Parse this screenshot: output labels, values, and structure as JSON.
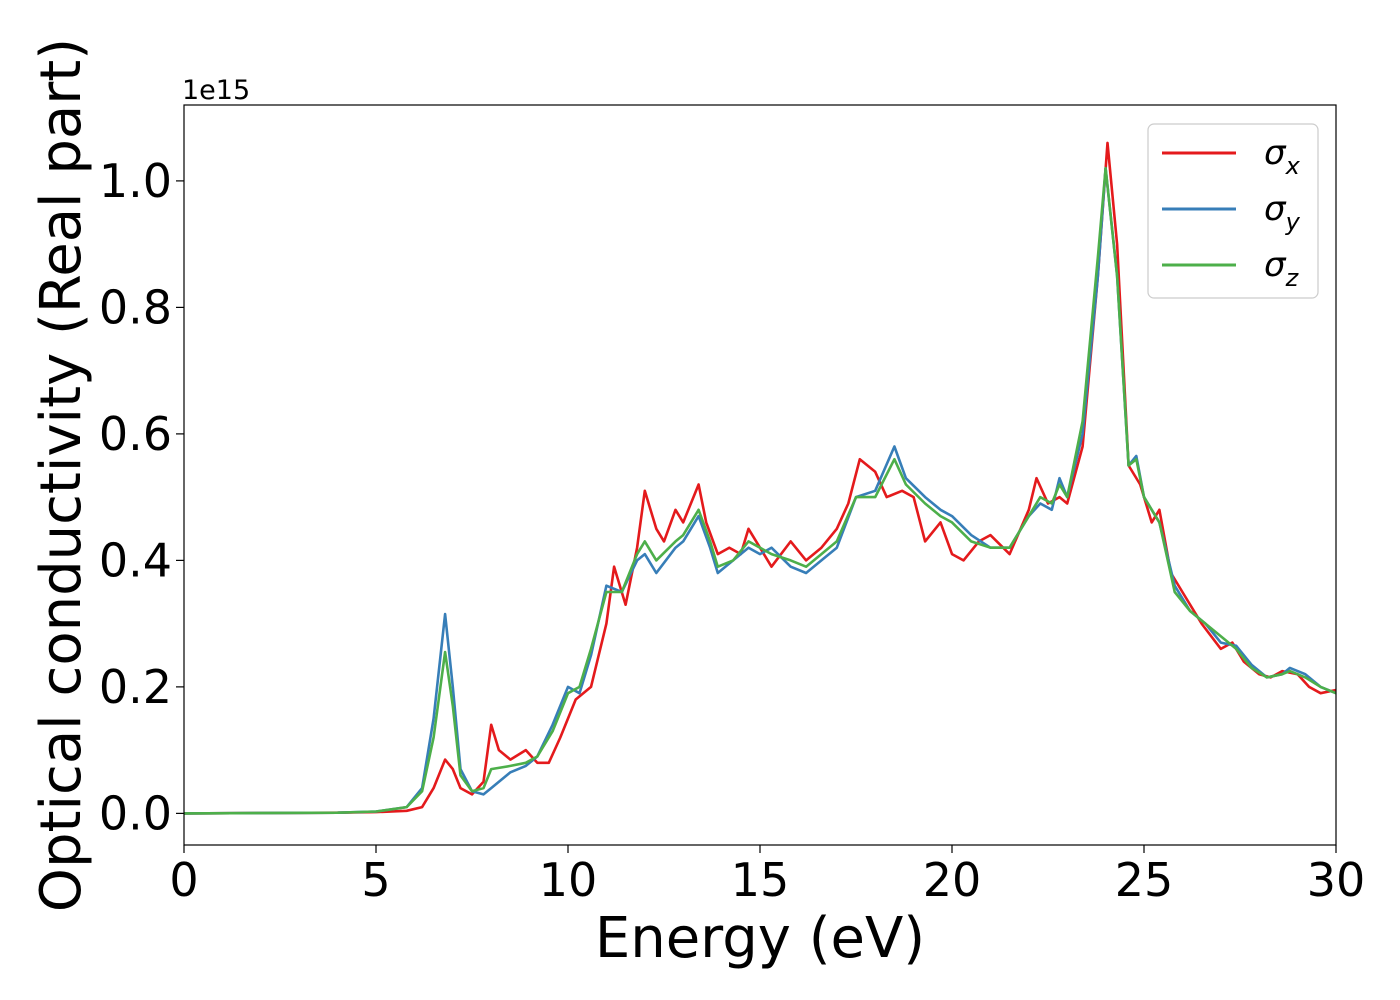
{
  "chart_data": {
    "type": "line",
    "title": "",
    "xlabel": "Energy (eV)",
    "ylabel": "Optical conductivity (Real part)",
    "y_offset_text": "1e15",
    "xlim": [
      0,
      30
    ],
    "ylim": [
      -0.05,
      1.12
    ],
    "xticks": [
      0,
      5,
      10,
      15,
      20,
      25,
      30
    ],
    "xtick_labels": [
      "0",
      "5",
      "10",
      "15",
      "20",
      "25",
      "30"
    ],
    "yticks": [
      0.0,
      0.2,
      0.4,
      0.6,
      0.8,
      1.0
    ],
    "ytick_labels": [
      "0.0",
      "0.2",
      "0.4",
      "0.6",
      "0.8",
      "1.0"
    ],
    "grid": false,
    "legend_position": "top-right",
    "series": [
      {
        "name": "σ",
        "subscript": "x",
        "color": "#e41a1c",
        "points": [
          [
            0,
            0
          ],
          [
            4,
            0.001
          ],
          [
            5,
            0.002
          ],
          [
            5.8,
            0.004
          ],
          [
            6.2,
            0.01
          ],
          [
            6.5,
            0.04
          ],
          [
            6.8,
            0.085
          ],
          [
            7.0,
            0.07
          ],
          [
            7.2,
            0.04
          ],
          [
            7.5,
            0.03
          ],
          [
            7.8,
            0.05
          ],
          [
            8.0,
            0.14
          ],
          [
            8.2,
            0.1
          ],
          [
            8.5,
            0.085
          ],
          [
            8.9,
            0.1
          ],
          [
            9.2,
            0.08
          ],
          [
            9.5,
            0.08
          ],
          [
            9.8,
            0.12
          ],
          [
            10.2,
            0.18
          ],
          [
            10.6,
            0.2
          ],
          [
            11.0,
            0.3
          ],
          [
            11.2,
            0.39
          ],
          [
            11.5,
            0.33
          ],
          [
            11.8,
            0.42
          ],
          [
            12.0,
            0.51
          ],
          [
            12.3,
            0.45
          ],
          [
            12.5,
            0.43
          ],
          [
            12.8,
            0.48
          ],
          [
            13.0,
            0.46
          ],
          [
            13.4,
            0.52
          ],
          [
            13.6,
            0.46
          ],
          [
            13.9,
            0.41
          ],
          [
            14.2,
            0.42
          ],
          [
            14.5,
            0.41
          ],
          [
            14.7,
            0.45
          ],
          [
            15.0,
            0.42
          ],
          [
            15.3,
            0.39
          ],
          [
            15.8,
            0.43
          ],
          [
            16.2,
            0.4
          ],
          [
            16.6,
            0.42
          ],
          [
            17.0,
            0.45
          ],
          [
            17.3,
            0.49
          ],
          [
            17.6,
            0.56
          ],
          [
            18.0,
            0.54
          ],
          [
            18.3,
            0.5
          ],
          [
            18.7,
            0.51
          ],
          [
            19.0,
            0.5
          ],
          [
            19.3,
            0.43
          ],
          [
            19.7,
            0.46
          ],
          [
            20.0,
            0.41
          ],
          [
            20.3,
            0.4
          ],
          [
            20.7,
            0.43
          ],
          [
            21.0,
            0.44
          ],
          [
            21.5,
            0.41
          ],
          [
            22.0,
            0.48
          ],
          [
            22.2,
            0.53
          ],
          [
            22.5,
            0.49
          ],
          [
            22.8,
            0.5
          ],
          [
            23.0,
            0.49
          ],
          [
            23.4,
            0.58
          ],
          [
            23.8,
            0.85
          ],
          [
            24.05,
            1.06
          ],
          [
            24.3,
            0.9
          ],
          [
            24.6,
            0.55
          ],
          [
            24.9,
            0.52
          ],
          [
            25.2,
            0.46
          ],
          [
            25.4,
            0.48
          ],
          [
            25.7,
            0.38
          ],
          [
            26.0,
            0.35
          ],
          [
            26.5,
            0.3
          ],
          [
            27.0,
            0.26
          ],
          [
            27.3,
            0.27
          ],
          [
            27.6,
            0.24
          ],
          [
            28.0,
            0.22
          ],
          [
            28.3,
            0.215
          ],
          [
            28.6,
            0.225
          ],
          [
            29.0,
            0.22
          ],
          [
            29.3,
            0.2
          ],
          [
            29.6,
            0.19
          ],
          [
            30.0,
            0.195
          ]
        ]
      },
      {
        "name": "σ",
        "subscript": "y",
        "color": "#377eb8",
        "points": [
          [
            0,
            0
          ],
          [
            4,
            0.001
          ],
          [
            5,
            0.003
          ],
          [
            5.8,
            0.01
          ],
          [
            6.2,
            0.04
          ],
          [
            6.5,
            0.15
          ],
          [
            6.8,
            0.315
          ],
          [
            7.0,
            0.2
          ],
          [
            7.2,
            0.07
          ],
          [
            7.5,
            0.035
          ],
          [
            7.8,
            0.03
          ],
          [
            8.0,
            0.04
          ],
          [
            8.5,
            0.065
          ],
          [
            8.9,
            0.075
          ],
          [
            9.2,
            0.09
          ],
          [
            9.6,
            0.14
          ],
          [
            10.0,
            0.2
          ],
          [
            10.3,
            0.19
          ],
          [
            10.6,
            0.25
          ],
          [
            11.0,
            0.36
          ],
          [
            11.4,
            0.35
          ],
          [
            11.8,
            0.4
          ],
          [
            12.0,
            0.41
          ],
          [
            12.3,
            0.38
          ],
          [
            12.8,
            0.42
          ],
          [
            13.0,
            0.43
          ],
          [
            13.4,
            0.47
          ],
          [
            13.7,
            0.42
          ],
          [
            13.9,
            0.38
          ],
          [
            14.3,
            0.4
          ],
          [
            14.7,
            0.42
          ],
          [
            15.0,
            0.41
          ],
          [
            15.3,
            0.42
          ],
          [
            15.8,
            0.39
          ],
          [
            16.2,
            0.38
          ],
          [
            16.6,
            0.4
          ],
          [
            17.0,
            0.42
          ],
          [
            17.5,
            0.5
          ],
          [
            18.0,
            0.51
          ],
          [
            18.5,
            0.58
          ],
          [
            18.8,
            0.53
          ],
          [
            19.3,
            0.5
          ],
          [
            19.7,
            0.48
          ],
          [
            20.0,
            0.47
          ],
          [
            20.5,
            0.44
          ],
          [
            21.0,
            0.42
          ],
          [
            21.5,
            0.42
          ],
          [
            22.0,
            0.47
          ],
          [
            22.3,
            0.49
          ],
          [
            22.6,
            0.48
          ],
          [
            22.8,
            0.53
          ],
          [
            23.0,
            0.5
          ],
          [
            23.4,
            0.6
          ],
          [
            23.8,
            0.85
          ],
          [
            24.0,
            1.02
          ],
          [
            24.3,
            0.85
          ],
          [
            24.6,
            0.55
          ],
          [
            24.8,
            0.565
          ],
          [
            25.0,
            0.5
          ],
          [
            25.4,
            0.46
          ],
          [
            25.8,
            0.36
          ],
          [
            26.2,
            0.32
          ],
          [
            26.6,
            0.3
          ],
          [
            27.0,
            0.27
          ],
          [
            27.4,
            0.265
          ],
          [
            27.8,
            0.235
          ],
          [
            28.2,
            0.215
          ],
          [
            28.6,
            0.22
          ],
          [
            28.8,
            0.23
          ],
          [
            29.2,
            0.22
          ],
          [
            29.6,
            0.2
          ],
          [
            30.0,
            0.19
          ]
        ]
      },
      {
        "name": "σ",
        "subscript": "z",
        "color": "#4daf4a",
        "points": [
          [
            0,
            0
          ],
          [
            4,
            0.001
          ],
          [
            5,
            0.003
          ],
          [
            5.8,
            0.01
          ],
          [
            6.2,
            0.035
          ],
          [
            6.5,
            0.12
          ],
          [
            6.8,
            0.255
          ],
          [
            7.0,
            0.17
          ],
          [
            7.2,
            0.06
          ],
          [
            7.5,
            0.035
          ],
          [
            7.8,
            0.04
          ],
          [
            8.0,
            0.07
          ],
          [
            8.5,
            0.075
          ],
          [
            8.9,
            0.08
          ],
          [
            9.2,
            0.09
          ],
          [
            9.6,
            0.13
          ],
          [
            10.0,
            0.19
          ],
          [
            10.3,
            0.2
          ],
          [
            10.6,
            0.26
          ],
          [
            11.0,
            0.35
          ],
          [
            11.4,
            0.35
          ],
          [
            11.8,
            0.41
          ],
          [
            12.0,
            0.43
          ],
          [
            12.3,
            0.4
          ],
          [
            12.8,
            0.43
          ],
          [
            13.0,
            0.44
          ],
          [
            13.4,
            0.48
          ],
          [
            13.7,
            0.43
          ],
          [
            13.9,
            0.39
          ],
          [
            14.3,
            0.4
          ],
          [
            14.7,
            0.43
          ],
          [
            15.0,
            0.42
          ],
          [
            15.3,
            0.41
          ],
          [
            15.8,
            0.4
          ],
          [
            16.2,
            0.39
          ],
          [
            16.6,
            0.41
          ],
          [
            17.0,
            0.43
          ],
          [
            17.5,
            0.5
          ],
          [
            18.0,
            0.5
          ],
          [
            18.5,
            0.56
          ],
          [
            18.8,
            0.52
          ],
          [
            19.3,
            0.49
          ],
          [
            19.7,
            0.47
          ],
          [
            20.0,
            0.46
          ],
          [
            20.5,
            0.43
          ],
          [
            21.0,
            0.42
          ],
          [
            21.5,
            0.42
          ],
          [
            22.0,
            0.47
          ],
          [
            22.3,
            0.5
          ],
          [
            22.6,
            0.49
          ],
          [
            22.8,
            0.52
          ],
          [
            23.0,
            0.5
          ],
          [
            23.4,
            0.62
          ],
          [
            23.8,
            0.88
          ],
          [
            24.0,
            1.02
          ],
          [
            24.3,
            0.85
          ],
          [
            24.6,
            0.55
          ],
          [
            24.8,
            0.56
          ],
          [
            25.0,
            0.5
          ],
          [
            25.4,
            0.46
          ],
          [
            25.8,
            0.35
          ],
          [
            26.2,
            0.32
          ],
          [
            26.6,
            0.3
          ],
          [
            27.0,
            0.28
          ],
          [
            27.4,
            0.26
          ],
          [
            27.8,
            0.23
          ],
          [
            28.2,
            0.215
          ],
          [
            28.6,
            0.22
          ],
          [
            28.8,
            0.225
          ],
          [
            29.2,
            0.215
          ],
          [
            29.6,
            0.2
          ],
          [
            30.0,
            0.19
          ]
        ]
      }
    ]
  }
}
